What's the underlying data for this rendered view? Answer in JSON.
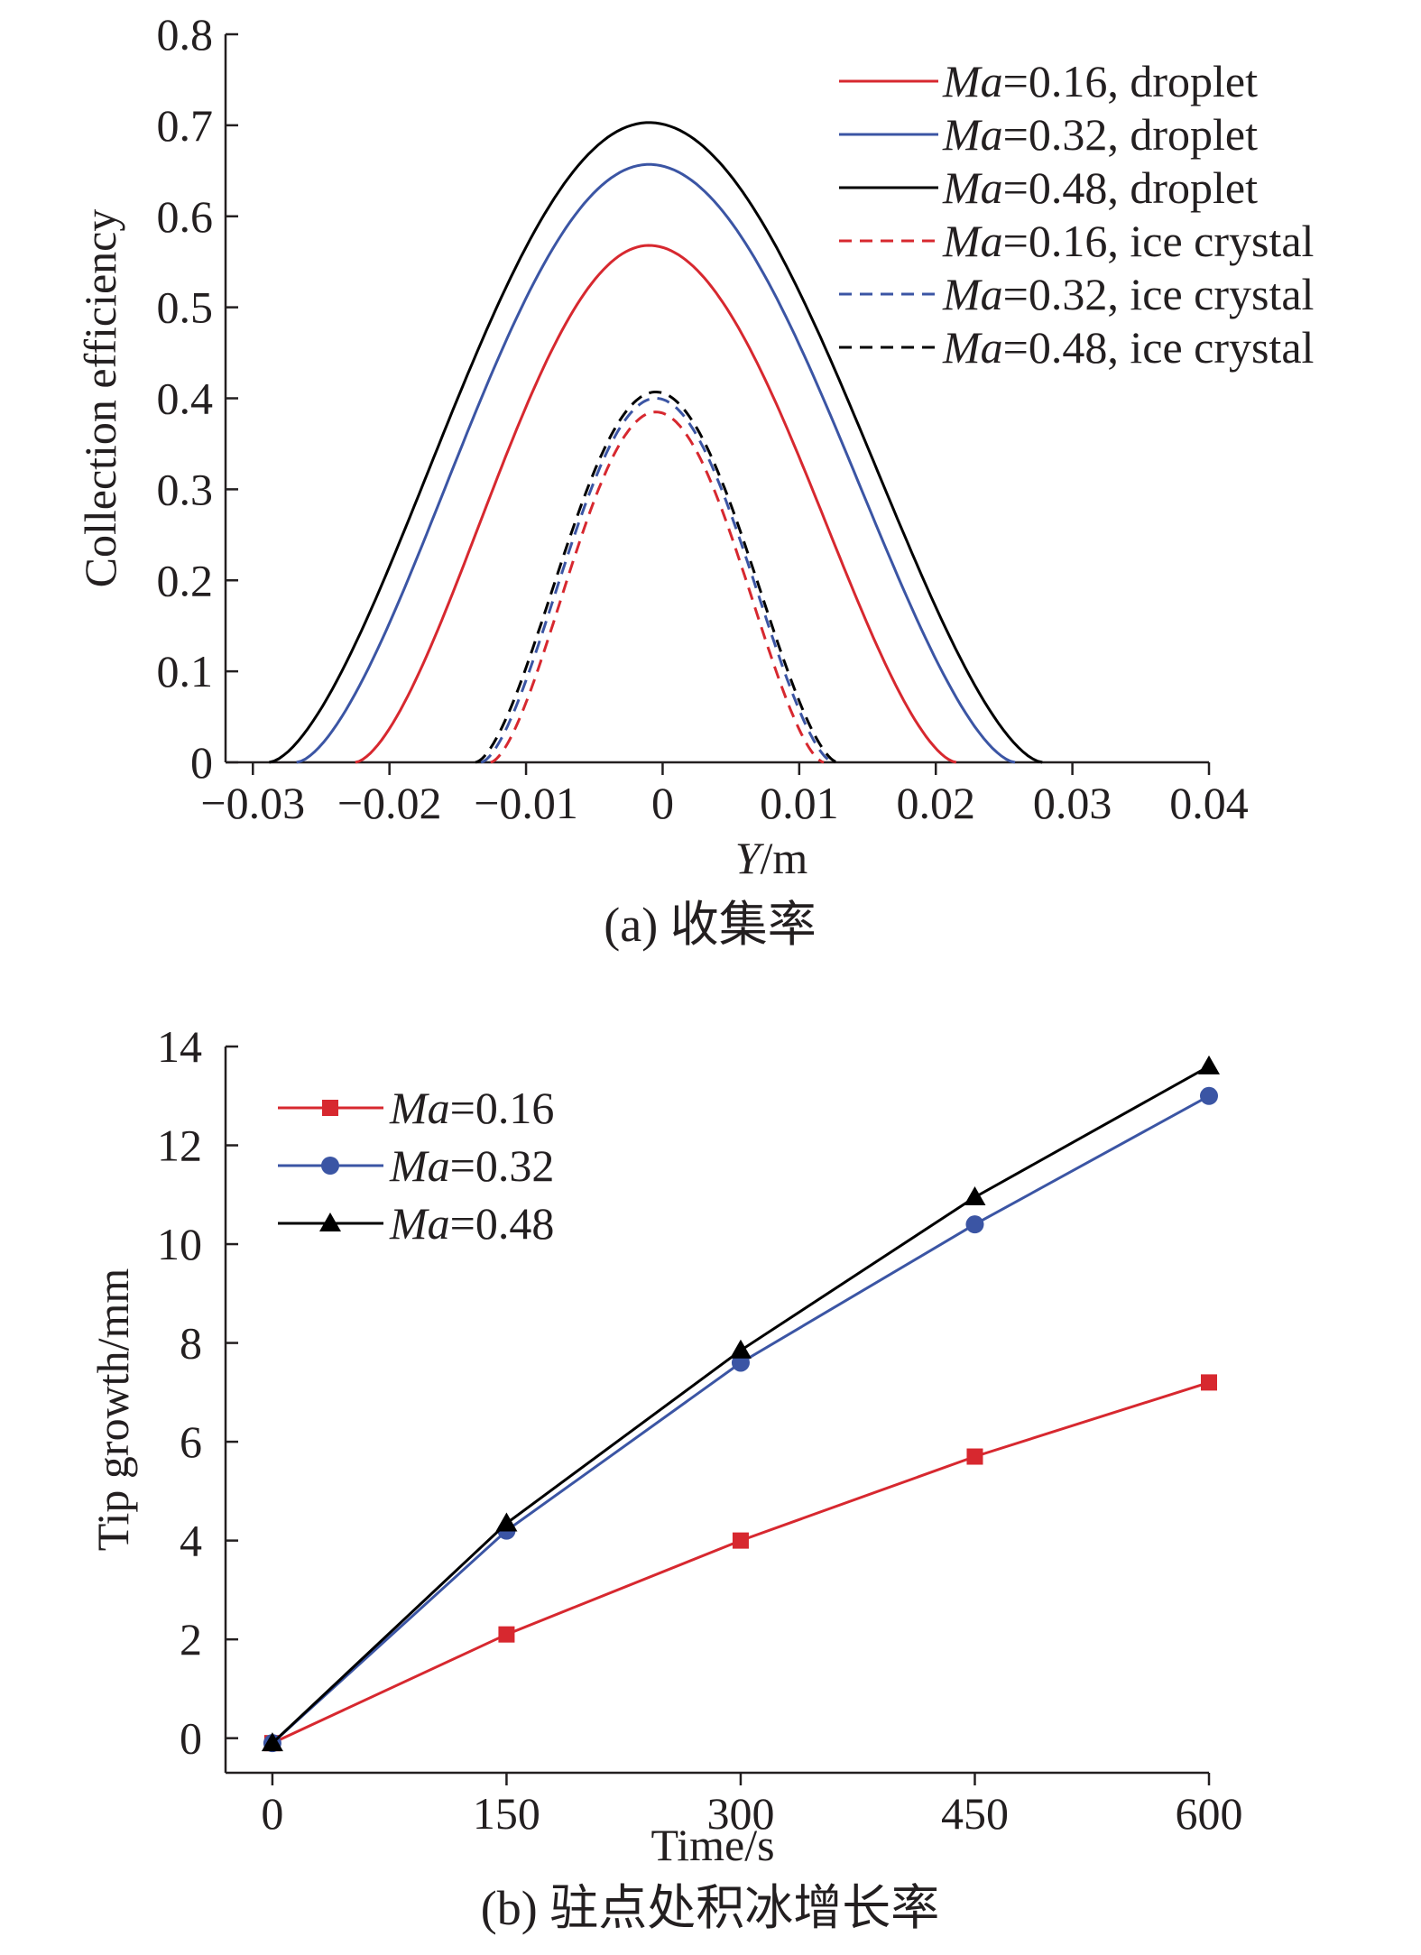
{
  "chart_data": [
    {
      "type": "line",
      "caption": "(a) 收集率",
      "xlabel": {
        "var": "Y",
        "unit": "/m"
      },
      "ylabel": "Collection efficiency",
      "xlim": [
        -0.032,
        0.04
      ],
      "ylim": [
        0,
        0.8
      ],
      "xticks": [
        -0.03,
        -0.02,
        -0.01,
        0,
        0.01,
        0.02,
        0.03,
        0.04
      ],
      "xtick_labels": [
        "−0.03",
        "−0.02",
        "−0.01",
        "0",
        "0.01",
        "0.02",
        "0.03",
        "0.04"
      ],
      "yticks": [
        0,
        0.1,
        0.2,
        0.3,
        0.4,
        0.5,
        0.6,
        0.7,
        0.8
      ],
      "ytick_labels": [
        "0",
        "0.1",
        "0.2",
        "0.3",
        "0.4",
        "0.5",
        "0.6",
        "0.7",
        "0.8"
      ],
      "legend_position": "top-right",
      "series": [
        {
          "name": "Ma=0.16, droplet",
          "label_var": "Ma",
          "label_rest": "=0.16, droplet",
          "color": "#d7282f",
          "dash": "solid",
          "peak": 0.568,
          "center": -0.001,
          "zero_left": -0.0225,
          "zero_right": 0.0215
        },
        {
          "name": "Ma=0.32, droplet",
          "label_var": "Ma",
          "label_rest": "=0.32, droplet",
          "color": "#3b55a4",
          "dash": "solid",
          "peak": 0.657,
          "center": -0.001,
          "zero_left": -0.0268,
          "zero_right": 0.0258
        },
        {
          "name": "Ma=0.48, droplet",
          "label_var": "Ma",
          "label_rest": "=0.48, droplet",
          "color": "#000000",
          "dash": "solid",
          "peak": 0.703,
          "center": -0.001,
          "zero_left": -0.0288,
          "zero_right": 0.0278
        },
        {
          "name": "Ma=0.16, ice crystal",
          "label_var": "Ma",
          "label_rest": "=0.16, ice crystal",
          "color": "#d7282f",
          "dash": "dashed",
          "peak": 0.385,
          "center": -0.0005,
          "zero_left": -0.0126,
          "zero_right": 0.0118
        },
        {
          "name": "Ma=0.32, ice crystal",
          "label_var": "Ma",
          "label_rest": "=0.32, ice crystal",
          "color": "#3b55a4",
          "dash": "dashed",
          "peak": 0.4,
          "center": -0.0005,
          "zero_left": -0.0133,
          "zero_right": 0.0125
        },
        {
          "name": "Ma=0.48, ice crystal",
          "label_var": "Ma",
          "label_rest": "=0.48, ice crystal",
          "color": "#000000",
          "dash": "dashed",
          "peak": 0.407,
          "center": -0.0005,
          "zero_left": -0.0137,
          "zero_right": 0.0128
        }
      ]
    },
    {
      "type": "line",
      "caption": "(b) 驻点处积冰增长率",
      "xlabel": "Time/s",
      "ylabel": "Tip growth/mm",
      "xlim": [
        -30,
        600
      ],
      "ylim": [
        -0.7,
        14
      ],
      "xticks": [
        0,
        150,
        300,
        450,
        600
      ],
      "xtick_labels": [
        "0",
        "150",
        "300",
        "450",
        "600"
      ],
      "yticks": [
        0,
        2,
        4,
        6,
        8,
        10,
        12,
        14
      ],
      "ytick_labels": [
        "0",
        "2",
        "4",
        "6",
        "8",
        "10",
        "12",
        "14"
      ],
      "legend_position": "top-left",
      "x": [
        0,
        150,
        300,
        450,
        600
      ],
      "series": [
        {
          "name": "Ma=0.16",
          "label_var": "Ma",
          "label_rest": "=0.16",
          "color": "#d7282f",
          "marker": "square",
          "values": [
            -0.1,
            2.1,
            4.0,
            5.7,
            7.2
          ]
        },
        {
          "name": "Ma=0.32",
          "label_var": "Ma",
          "label_rest": "=0.32",
          "color": "#3b55a4",
          "marker": "circle",
          "values": [
            -0.1,
            4.2,
            7.6,
            10.4,
            13.0
          ]
        },
        {
          "name": "Ma=0.48",
          "label_var": "Ma",
          "label_rest": "=0.48",
          "color": "#000000",
          "marker": "triangle",
          "values": [
            -0.1,
            4.35,
            7.85,
            10.95,
            13.6
          ]
        }
      ]
    }
  ]
}
